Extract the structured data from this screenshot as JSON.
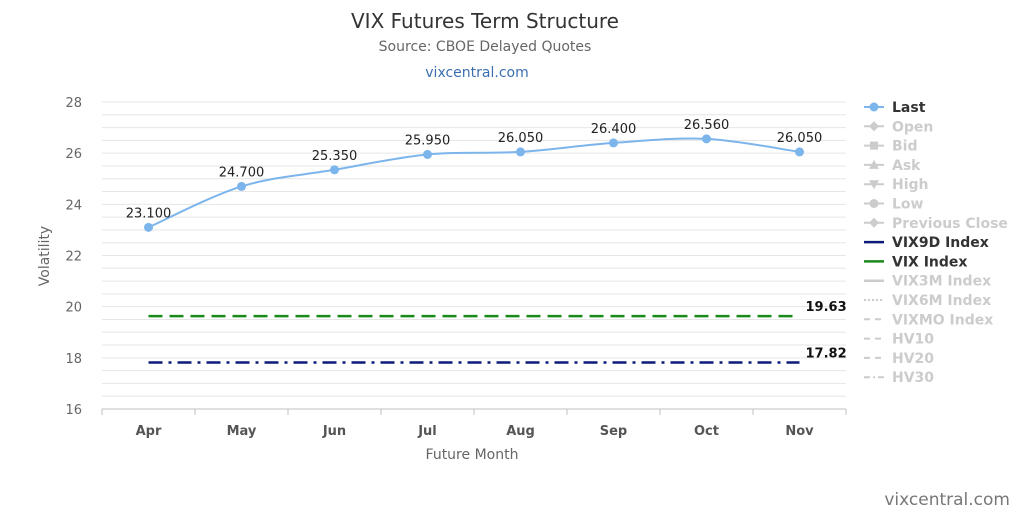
{
  "chart_data": {
    "type": "line",
    "title": "VIX Futures Term Structure",
    "subtitle": "Source: CBOE Delayed Quotes",
    "link_text": "vixcentral.com",
    "xlabel": "Future Month",
    "ylabel": "Volatility",
    "categories": [
      "Apr",
      "May",
      "Jun",
      "Jul",
      "Aug",
      "Sep",
      "Oct",
      "Nov"
    ],
    "ylim": [
      16,
      28
    ],
    "yticks": [
      16,
      18,
      20,
      22,
      24,
      26,
      28
    ],
    "grid": true,
    "legend_position": "right",
    "series": [
      {
        "name": "Last",
        "values": [
          23.1,
          24.7,
          25.35,
          25.95,
          26.05,
          26.4,
          26.56,
          26.05
        ],
        "labels": [
          "23.100",
          "24.700",
          "25.350",
          "25.950",
          "26.050",
          "26.400",
          "26.560",
          "26.050"
        ],
        "color": "#7cb5ec"
      },
      {
        "name": "VIX9D Index",
        "value": 17.82,
        "value_label": "17.82",
        "color": "#0b1b7a"
      },
      {
        "name": "VIX Index",
        "value": 19.63,
        "value_label": "19.63",
        "color": "#1a8a1a"
      }
    ],
    "legend": [
      {
        "name": "Last",
        "active": true,
        "color": "#7cb5ec",
        "marker": "circle-line"
      },
      {
        "name": "Open",
        "active": false,
        "color": "#cccccc",
        "marker": "diamond-line"
      },
      {
        "name": "Bid",
        "active": false,
        "color": "#cccccc",
        "marker": "square-line"
      },
      {
        "name": "Ask",
        "active": false,
        "color": "#cccccc",
        "marker": "triangle-line"
      },
      {
        "name": "High",
        "active": false,
        "color": "#cccccc",
        "marker": "triangle-down-line"
      },
      {
        "name": "Low",
        "active": false,
        "color": "#cccccc",
        "marker": "circle-line"
      },
      {
        "name": "Previous Close",
        "active": false,
        "color": "#cccccc",
        "marker": "diamond-line"
      },
      {
        "name": "VIX9D Index",
        "active": true,
        "color": "#0b1b7a",
        "marker": "solid"
      },
      {
        "name": "VIX Index",
        "active": true,
        "color": "#1a8a1a",
        "marker": "solid"
      },
      {
        "name": "VIX3M Index",
        "active": false,
        "color": "#cccccc",
        "marker": "solid"
      },
      {
        "name": "VIX6M Index",
        "active": false,
        "color": "#cccccc",
        "marker": "dotted"
      },
      {
        "name": "VIXMO Index",
        "active": false,
        "color": "#cccccc",
        "marker": "dashed"
      },
      {
        "name": "HV10",
        "active": false,
        "color": "#cccccc",
        "marker": "dashed"
      },
      {
        "name": "HV20",
        "active": false,
        "color": "#cccccc",
        "marker": "dashed"
      },
      {
        "name": "HV30",
        "active": false,
        "color": "#cccccc",
        "marker": "dashdot"
      }
    ]
  },
  "credits": "vixcentral.com",
  "colors": {
    "inactive": "#cccccc",
    "active_text": "#333333",
    "grid": "#e6e6e6"
  }
}
